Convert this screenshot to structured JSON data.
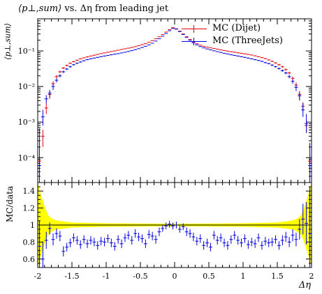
{
  "title_tex": "⟨p⊥,sum⟩ vs. Δη from leading jet",
  "title": "vs. Δη from leading jet",
  "title_pre": "⟨p⊥,sum⟩",
  "ylabel_main": "⟨p⊥,sum⟩",
  "ylabel_ratio": "MC/data",
  "xlabel": "Δη",
  "chart_data": [
    {
      "type": "scatter",
      "panel": "main",
      "yscale": "log",
      "xlim": [
        -2,
        2
      ],
      "ylim": [
        2e-05,
        0.8
      ],
      "y_tick_labels": [
        "10⁻⁴",
        "10⁻³",
        "10⁻²",
        "10⁻¹"
      ],
      "y_ticks": [
        0.0001,
        0.001,
        0.01,
        0.1
      ],
      "legend_position": "top-right",
      "series": [
        {
          "name": "MC (Dijet)",
          "color": "#e8000b",
          "x": [
            -1.975,
            -1.925,
            -1.875,
            -1.825,
            -1.775,
            -1.725,
            -1.675,
            -1.625,
            -1.575,
            -1.525,
            -1.475,
            -1.425,
            -1.375,
            -1.325,
            -1.275,
            -1.225,
            -1.175,
            -1.125,
            -1.075,
            -1.025,
            -0.975,
            -0.925,
            -0.875,
            -0.825,
            -0.775,
            -0.725,
            -0.675,
            -0.625,
            -0.575,
            -0.525,
            -0.475,
            -0.425,
            -0.375,
            -0.325,
            -0.275,
            -0.225,
            -0.175,
            -0.125,
            -0.075,
            -0.025,
            0.025,
            0.075,
            0.125,
            0.175,
            0.225,
            0.275,
            0.325,
            0.375,
            0.425,
            0.475,
            0.525,
            0.575,
            0.625,
            0.675,
            0.725,
            0.775,
            0.825,
            0.875,
            0.925,
            0.975,
            1.025,
            1.075,
            1.125,
            1.175,
            1.225,
            1.275,
            1.325,
            1.375,
            1.425,
            1.475,
            1.525,
            1.575,
            1.625,
            1.675,
            1.725,
            1.775,
            1.825,
            1.875,
            1.925,
            1.975
          ],
          "y": [
            8e-05,
            0.0004,
            0.0025,
            0.006,
            0.012,
            0.019,
            0.026,
            0.033,
            0.039,
            0.045,
            0.05,
            0.055,
            0.06,
            0.064,
            0.068,
            0.072,
            0.076,
            0.08,
            0.084,
            0.088,
            0.092,
            0.096,
            0.1,
            0.105,
            0.11,
            0.115,
            0.12,
            0.125,
            0.132,
            0.14,
            0.15,
            0.16,
            0.175,
            0.195,
            0.22,
            0.25,
            0.29,
            0.34,
            0.4,
            0.45,
            0.42,
            0.36,
            0.3,
            0.25,
            0.21,
            0.18,
            0.16,
            0.145,
            0.135,
            0.128,
            0.122,
            0.117,
            0.112,
            0.107,
            0.103,
            0.099,
            0.095,
            0.092,
            0.089,
            0.086,
            0.083,
            0.08,
            0.077,
            0.073,
            0.069,
            0.065,
            0.061,
            0.056,
            0.051,
            0.046,
            0.041,
            0.036,
            0.03,
            0.024,
            0.017,
            0.011,
            0.006,
            0.0028,
            0.0008,
            8e-05
          ],
          "err_lo": [
            7e-05,
            0.0002,
            0.0008,
            0.0015,
            0.002,
            0.002,
            0.002,
            0.002,
            0.002,
            0.002,
            0.002,
            0.002,
            0.002,
            0.002,
            0.002,
            0.002,
            0.002,
            0.002,
            0.002,
            0.002,
            0.002,
            0.002,
            0.002,
            0.002,
            0.002,
            0.002,
            0.002,
            0.002,
            0.002,
            0.002,
            0.002,
            0.002,
            0.002,
            0.002,
            0.002,
            0.002,
            0.002,
            0.002,
            0.002,
            0.002,
            0.002,
            0.002,
            0.002,
            0.002,
            0.002,
            0.002,
            0.002,
            0.002,
            0.002,
            0.002,
            0.002,
            0.002,
            0.002,
            0.002,
            0.002,
            0.002,
            0.002,
            0.002,
            0.002,
            0.002,
            0.002,
            0.002,
            0.002,
            0.002,
            0.002,
            0.002,
            0.002,
            0.002,
            0.002,
            0.002,
            0.002,
            0.002,
            0.002,
            0.002,
            0.002,
            0.002,
            0.0015,
            0.0008,
            0.0003,
            4e-05
          ],
          "err_hi": [
            0.0001,
            0.0002,
            0.0008,
            0.0015,
            0.002,
            0.002,
            0.002,
            0.002,
            0.002,
            0.002,
            0.002,
            0.002,
            0.002,
            0.002,
            0.002,
            0.002,
            0.002,
            0.002,
            0.002,
            0.002,
            0.002,
            0.002,
            0.002,
            0.002,
            0.002,
            0.002,
            0.002,
            0.002,
            0.002,
            0.002,
            0.002,
            0.002,
            0.002,
            0.002,
            0.002,
            0.002,
            0.002,
            0.002,
            0.002,
            0.002,
            0.002,
            0.002,
            0.002,
            0.002,
            0.002,
            0.002,
            0.002,
            0.002,
            0.002,
            0.002,
            0.002,
            0.002,
            0.002,
            0.002,
            0.002,
            0.002,
            0.002,
            0.002,
            0.002,
            0.002,
            0.002,
            0.002,
            0.002,
            0.002,
            0.002,
            0.002,
            0.002,
            0.002,
            0.002,
            0.002,
            0.002,
            0.002,
            0.002,
            0.002,
            0.002,
            0.002,
            0.0015,
            0.0008,
            0.0003,
            4e-05
          ]
        },
        {
          "name": "MC (ThreeJets)",
          "color": "#0000e6",
          "x": [
            -1.975,
            -1.925,
            -1.875,
            -1.825,
            -1.775,
            -1.725,
            -1.675,
            -1.625,
            -1.575,
            -1.525,
            -1.475,
            -1.425,
            -1.375,
            -1.325,
            -1.275,
            -1.225,
            -1.175,
            -1.125,
            -1.075,
            -1.025,
            -0.975,
            -0.925,
            -0.875,
            -0.825,
            -0.775,
            -0.725,
            -0.675,
            -0.625,
            -0.575,
            -0.525,
            -0.475,
            -0.425,
            -0.375,
            -0.325,
            -0.275,
            -0.225,
            -0.175,
            -0.125,
            -0.075,
            -0.025,
            0.025,
            0.075,
            0.125,
            0.175,
            0.225,
            0.275,
            0.325,
            0.375,
            0.425,
            0.475,
            0.525,
            0.575,
            0.625,
            0.675,
            0.725,
            0.775,
            0.825,
            0.875,
            0.925,
            0.975,
            1.025,
            1.075,
            1.125,
            1.175,
            1.225,
            1.275,
            1.325,
            1.375,
            1.425,
            1.475,
            1.525,
            1.575,
            1.625,
            1.675,
            1.725,
            1.775,
            1.825,
            1.875,
            1.925,
            1.975
          ],
          "y": [
            6e-05,
            0.0014,
            0.0045,
            0.0065,
            0.01,
            0.015,
            0.02,
            0.026,
            0.031,
            0.036,
            0.041,
            0.045,
            0.049,
            0.053,
            0.057,
            0.06,
            0.063,
            0.066,
            0.069,
            0.072,
            0.075,
            0.078,
            0.081,
            0.084,
            0.088,
            0.092,
            0.097,
            0.102,
            0.108,
            0.116,
            0.125,
            0.135,
            0.148,
            0.165,
            0.19,
            0.22,
            0.26,
            0.31,
            0.37,
            0.43,
            0.41,
            0.35,
            0.29,
            0.24,
            0.2,
            0.17,
            0.148,
            0.133,
            0.122,
            0.114,
            0.107,
            0.101,
            0.096,
            0.091,
            0.086,
            0.082,
            0.078,
            0.075,
            0.072,
            0.069,
            0.066,
            0.063,
            0.06,
            0.057,
            0.054,
            0.051,
            0.047,
            0.044,
            0.04,
            0.036,
            0.032,
            0.028,
            0.024,
            0.019,
            0.014,
            0.0095,
            0.0055,
            0.0022,
            0.0009,
            6e-05
          ],
          "err_lo": [
            4e-05,
            0.0006,
            0.0012,
            0.0015,
            0.002,
            0.002,
            0.002,
            0.002,
            0.002,
            0.002,
            0.002,
            0.002,
            0.002,
            0.002,
            0.002,
            0.002,
            0.002,
            0.002,
            0.002,
            0.002,
            0.002,
            0.002,
            0.002,
            0.002,
            0.002,
            0.002,
            0.002,
            0.002,
            0.002,
            0.002,
            0.002,
            0.002,
            0.002,
            0.002,
            0.002,
            0.002,
            0.002,
            0.002,
            0.002,
            0.002,
            0.002,
            0.002,
            0.002,
            0.002,
            0.002,
            0.002,
            0.002,
            0.002,
            0.002,
            0.002,
            0.002,
            0.002,
            0.002,
            0.002,
            0.002,
            0.002,
            0.002,
            0.002,
            0.002,
            0.002,
            0.002,
            0.002,
            0.002,
            0.002,
            0.002,
            0.002,
            0.002,
            0.002,
            0.002,
            0.002,
            0.002,
            0.002,
            0.002,
            0.002,
            0.002,
            0.002,
            0.0015,
            0.0008,
            0.0004,
            5e-05
          ],
          "err_hi": [
            0.0006,
            0.0008,
            0.0012,
            0.0015,
            0.002,
            0.002,
            0.002,
            0.002,
            0.002,
            0.002,
            0.002,
            0.002,
            0.002,
            0.002,
            0.002,
            0.002,
            0.002,
            0.002,
            0.002,
            0.002,
            0.002,
            0.002,
            0.002,
            0.002,
            0.002,
            0.002,
            0.002,
            0.002,
            0.002,
            0.002,
            0.002,
            0.002,
            0.002,
            0.002,
            0.002,
            0.002,
            0.002,
            0.002,
            0.002,
            0.002,
            0.002,
            0.002,
            0.002,
            0.002,
            0.002,
            0.002,
            0.002,
            0.002,
            0.002,
            0.002,
            0.002,
            0.002,
            0.002,
            0.002,
            0.002,
            0.002,
            0.002,
            0.002,
            0.002,
            0.002,
            0.002,
            0.002,
            0.002,
            0.002,
            0.002,
            0.002,
            0.002,
            0.002,
            0.002,
            0.002,
            0.002,
            0.002,
            0.002,
            0.002,
            0.002,
            0.002,
            0.0015,
            0.0012,
            0.0008,
            0.0002
          ]
        }
      ]
    },
    {
      "type": "scatter",
      "panel": "ratio",
      "xlim": [
        -2,
        2
      ],
      "ylim": [
        0.5,
        1.5
      ],
      "x_ticks": [
        -2,
        -1.5,
        -1,
        -0.5,
        0,
        0.5,
        1,
        1.5,
        2
      ],
      "x_tick_labels": [
        "-2",
        "-1.5",
        "-1",
        "-0.5",
        "0",
        "0.5",
        "1",
        "1.5",
        "2"
      ],
      "y_ticks": [
        0.6,
        0.8,
        1,
        1.2,
        1.4
      ],
      "y_tick_labels": [
        "0.6",
        "0.8",
        "1",
        "1.2",
        "1.4"
      ],
      "band_color": "#ffff00",
      "band_x": [
        -2,
        -1.95,
        -1.9,
        -1.85,
        -1.8,
        -1.75,
        -1.7,
        -1.6,
        -1.5,
        -1.0,
        0.0,
        1.0,
        1.5,
        1.6,
        1.7,
        1.75,
        1.8,
        1.85,
        1.9,
        1.95,
        2
      ],
      "band_halfwidth": [
        0.5,
        0.35,
        0.22,
        0.12,
        0.08,
        0.06,
        0.05,
        0.04,
        0.03,
        0.02,
        0.015,
        0.02,
        0.03,
        0.04,
        0.05,
        0.06,
        0.08,
        0.12,
        0.22,
        0.35,
        0.5
      ],
      "series": [
        {
          "name": "MC (ThreeJets)",
          "color": "#0000e6",
          "x": [
            -1.975,
            -1.925,
            -1.875,
            -1.825,
            -1.775,
            -1.725,
            -1.675,
            -1.625,
            -1.575,
            -1.525,
            -1.475,
            -1.425,
            -1.375,
            -1.325,
            -1.275,
            -1.225,
            -1.175,
            -1.125,
            -1.075,
            -1.025,
            -0.975,
            -0.925,
            -0.875,
            -0.825,
            -0.775,
            -0.725,
            -0.675,
            -0.625,
            -0.575,
            -0.525,
            -0.475,
            -0.425,
            -0.375,
            -0.325,
            -0.275,
            -0.225,
            -0.175,
            -0.125,
            -0.075,
            -0.025,
            0.025,
            0.075,
            0.125,
            0.175,
            0.225,
            0.275,
            0.325,
            0.375,
            0.425,
            0.475,
            0.525,
            0.575,
            0.625,
            0.675,
            0.725,
            0.775,
            0.825,
            0.875,
            0.925,
            0.975,
            1.025,
            1.075,
            1.125,
            1.175,
            1.225,
            1.275,
            1.325,
            1.375,
            1.425,
            1.475,
            1.525,
            1.575,
            1.625,
            1.675,
            1.725,
            1.775,
            1.825,
            1.875,
            1.925,
            1.975
          ],
          "y": [
            0.75,
            0.6,
            0.82,
            0.96,
            0.83,
            0.9,
            0.87,
            0.69,
            0.74,
            0.79,
            0.85,
            0.82,
            0.77,
            0.83,
            0.78,
            0.82,
            0.8,
            0.76,
            0.81,
            0.8,
            0.84,
            0.79,
            0.75,
            0.83,
            0.78,
            0.85,
            0.88,
            0.82,
            0.9,
            0.86,
            0.84,
            0.78,
            0.89,
            0.87,
            0.83,
            0.92,
            0.96,
            0.99,
            1.01,
            0.99,
            1.0,
            0.95,
            0.98,
            0.92,
            0.9,
            0.86,
            0.81,
            0.84,
            0.76,
            0.79,
            0.74,
            0.88,
            0.82,
            0.85,
            0.79,
            0.76,
            0.83,
            0.88,
            0.82,
            0.79,
            0.84,
            0.77,
            0.8,
            0.78,
            0.85,
            0.76,
            0.81,
            0.79,
            0.8,
            0.83,
            0.76,
            0.82,
            0.86,
            0.8,
            0.88,
            0.83,
            0.95,
            1.07,
            1.02,
            0.9
          ],
          "err": [
            0.3,
            0.2,
            0.1,
            0.07,
            0.07,
            0.06,
            0.06,
            0.06,
            0.05,
            0.05,
            0.05,
            0.05,
            0.05,
            0.05,
            0.05,
            0.05,
            0.05,
            0.05,
            0.05,
            0.05,
            0.05,
            0.05,
            0.05,
            0.05,
            0.05,
            0.05,
            0.05,
            0.05,
            0.05,
            0.05,
            0.05,
            0.05,
            0.05,
            0.05,
            0.05,
            0.05,
            0.04,
            0.04,
            0.04,
            0.04,
            0.04,
            0.04,
            0.04,
            0.05,
            0.05,
            0.05,
            0.05,
            0.05,
            0.05,
            0.05,
            0.05,
            0.05,
            0.05,
            0.05,
            0.05,
            0.05,
            0.05,
            0.05,
            0.05,
            0.05,
            0.05,
            0.05,
            0.05,
            0.05,
            0.05,
            0.05,
            0.05,
            0.05,
            0.05,
            0.05,
            0.05,
            0.06,
            0.06,
            0.06,
            0.07,
            0.08,
            0.12,
            0.18,
            0.25,
            0.55
          ]
        }
      ]
    }
  ]
}
